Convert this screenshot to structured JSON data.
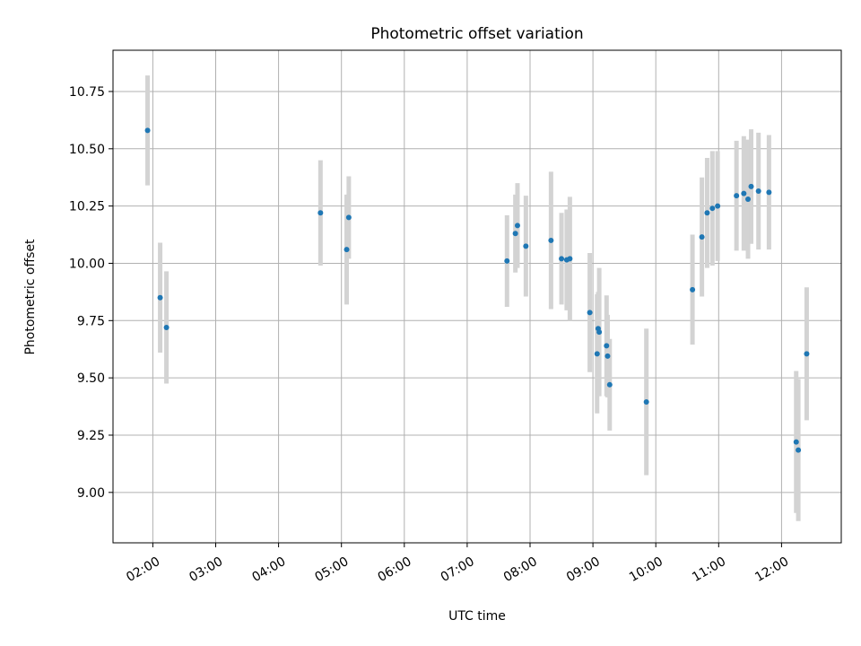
{
  "chart_data": {
    "type": "scatter",
    "title": "Photometric offset variation",
    "xlabel": "UTC time",
    "ylabel": "Photometric offset",
    "x_ticks": [
      "02:00",
      "03:00",
      "04:00",
      "05:00",
      "06:00",
      "07:00",
      "08:00",
      "09:00",
      "10:00",
      "11:00",
      "12:00"
    ],
    "x_tick_hours": [
      2,
      3,
      4,
      5,
      6,
      7,
      8,
      9,
      10,
      11,
      12
    ],
    "y_ticks": [
      "9.00",
      "9.25",
      "9.50",
      "9.75",
      "10.00",
      "10.25",
      "10.50",
      "10.75"
    ],
    "y_tick_values": [
      9.0,
      9.25,
      9.5,
      9.75,
      10.0,
      10.25,
      10.5,
      10.75
    ],
    "xlim": [
      "01:22",
      "12:57"
    ],
    "ylim": [
      8.78,
      10.93
    ],
    "grid": true,
    "point_color": "#1f77b4",
    "errorbar_color": "#d3d3d3",
    "points": [
      {
        "time": "01:55",
        "y": 10.58,
        "err": 0.24
      },
      {
        "time": "02:07",
        "y": 9.85,
        "err": 0.24
      },
      {
        "time": "02:13",
        "y": 9.72,
        "err": 0.245
      },
      {
        "time": "04:40",
        "y": 10.22,
        "err": 0.23
      },
      {
        "time": "05:05",
        "y": 10.06,
        "err": 0.24
      },
      {
        "time": "05:07",
        "y": 10.2,
        "err": 0.18
      },
      {
        "time": "07:38",
        "y": 10.01,
        "err": 0.2
      },
      {
        "time": "07:46",
        "y": 10.13,
        "err": 0.17
      },
      {
        "time": "07:48",
        "y": 10.165,
        "err": 0.185
      },
      {
        "time": "07:56",
        "y": 10.075,
        "err": 0.22
      },
      {
        "time": "08:20",
        "y": 10.1,
        "err": 0.3
      },
      {
        "time": "08:30",
        "y": 10.02,
        "err": 0.2
      },
      {
        "time": "08:35",
        "y": 10.015,
        "err": 0.22
      },
      {
        "time": "08:38",
        "y": 10.02,
        "err": 0.27
      },
      {
        "time": "08:57",
        "y": 9.785,
        "err": 0.26
      },
      {
        "time": "09:04",
        "y": 9.605,
        "err": 0.26
      },
      {
        "time": "09:05",
        "y": 9.715,
        "err": 0.16
      },
      {
        "time": "09:06",
        "y": 9.7,
        "err": 0.28
      },
      {
        "time": "09:13",
        "y": 9.64,
        "err": 0.22
      },
      {
        "time": "09:14",
        "y": 9.595,
        "err": 0.18
      },
      {
        "time": "09:16",
        "y": 9.47,
        "err": 0.2
      },
      {
        "time": "09:51",
        "y": 9.395,
        "err": 0.32
      },
      {
        "time": "10:35",
        "y": 9.885,
        "err": 0.24
      },
      {
        "time": "10:44",
        "y": 10.115,
        "err": 0.26
      },
      {
        "time": "10:49",
        "y": 10.22,
        "err": 0.24
      },
      {
        "time": "10:54",
        "y": 10.24,
        "err": 0.25
      },
      {
        "time": "10:59",
        "y": 10.25,
        "err": 0.24
      },
      {
        "time": "11:17",
        "y": 10.295,
        "err": 0.24
      },
      {
        "time": "11:24",
        "y": 10.305,
        "err": 0.25
      },
      {
        "time": "11:28",
        "y": 10.28,
        "err": 0.26
      },
      {
        "time": "11:31",
        "y": 10.335,
        "err": 0.25
      },
      {
        "time": "11:38",
        "y": 10.315,
        "err": 0.255
      },
      {
        "time": "11:48",
        "y": 10.31,
        "err": 0.25
      },
      {
        "time": "12:14",
        "y": 9.22,
        "err": 0.31
      },
      {
        "time": "12:16",
        "y": 9.185,
        "err": 0.31
      },
      {
        "time": "12:24",
        "y": 9.605,
        "err": 0.29
      }
    ]
  }
}
